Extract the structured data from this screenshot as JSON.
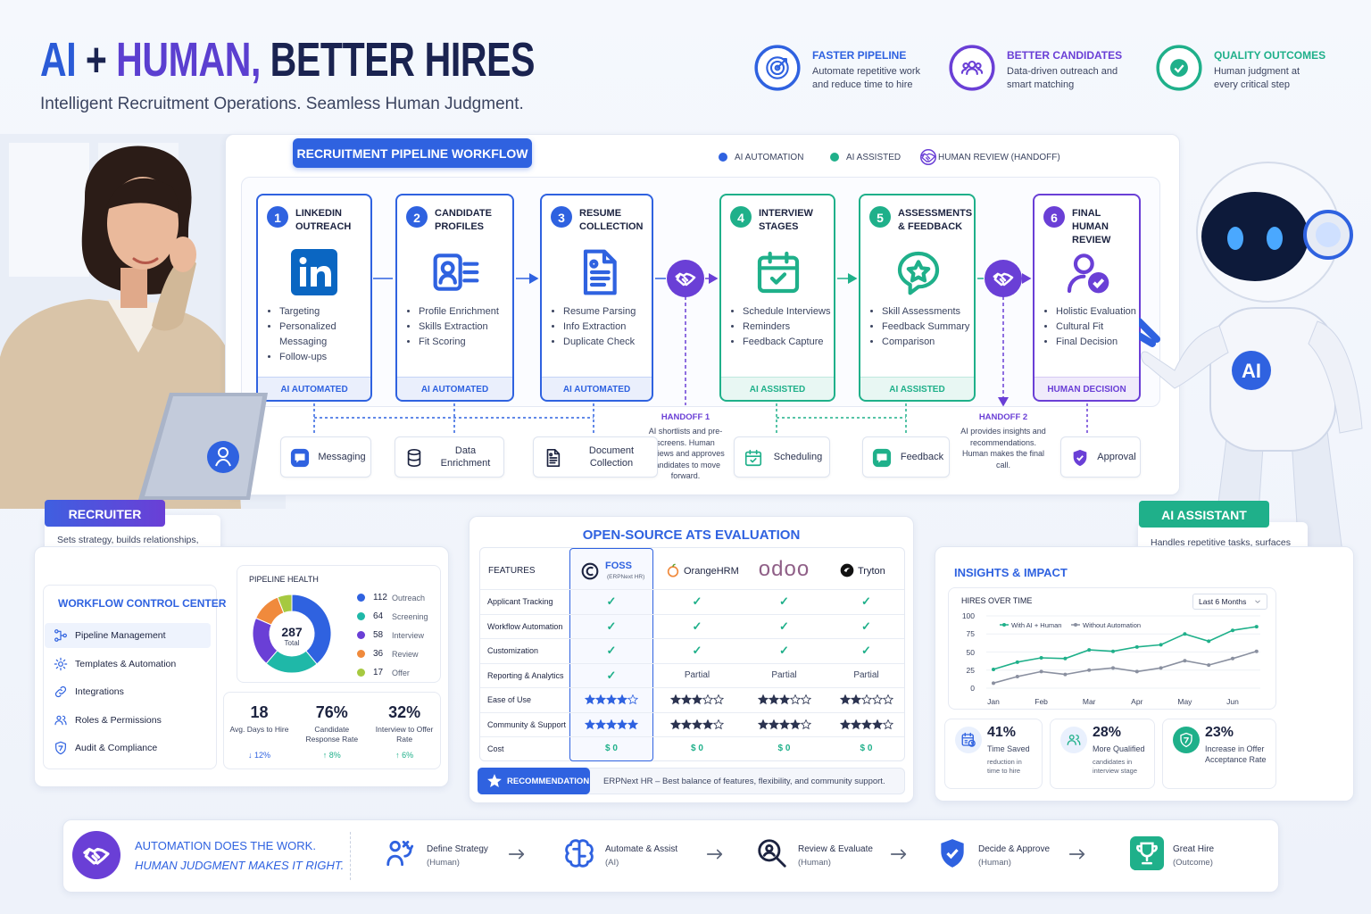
{
  "header": {
    "title_ai": "AI",
    "title_plus": "+",
    "title_human": "HUMAN,",
    "title_rest": "BETTER HIRES",
    "subtitle": "Intelligent Recruitment Operations. Seamless Human Judgment."
  },
  "benefits": [
    {
      "title": "FASTER PIPELINE",
      "text": "Automate repetitive work and reduce time to hire",
      "color": "#2f62e0"
    },
    {
      "title": "BETTER CANDIDATES",
      "text": "Data-driven outreach and smart matching",
      "color": "#6a3fd6"
    },
    {
      "title": "QUALITY OUTCOMES",
      "text": "Human judgment at every critical step",
      "color": "#1fb08a"
    }
  ],
  "pipeline": {
    "title": "RECRUITMENT PIPELINE WORKFLOW",
    "legend": [
      {
        "label": "AI AUTOMATION",
        "color": "#2f62e0"
      },
      {
        "label": "AI ASSISTED",
        "color": "#1fb08a"
      },
      {
        "label": "HUMAN REVIEW (HANDOFF)",
        "color": "#6a3fd6"
      }
    ],
    "steps": [
      {
        "number": 1,
        "title": "LINKEDIN OUTREACH",
        "bullets": [
          "Targeting",
          "Personalized Messaging",
          "Follow-ups"
        ],
        "tag": "AI AUTOMATED",
        "color": "#2f62e0"
      },
      {
        "number": 2,
        "title": "CANDIDATE PROFILES",
        "bullets": [
          "Profile Enrichment",
          "Skills Extraction",
          "Fit Scoring"
        ],
        "tag": "AI AUTOMATED",
        "color": "#2f62e0"
      },
      {
        "number": 3,
        "title": "RESUME COLLECTION",
        "bullets": [
          "Resume Parsing",
          "Info Extraction",
          "Duplicate Check"
        ],
        "tag": "AI AUTOMATED",
        "color": "#2f62e0"
      },
      {
        "number": 4,
        "title": "INTERVIEW STAGES",
        "bullets": [
          "Schedule Interviews",
          "Reminders",
          "Feedback Capture"
        ],
        "tag": "AI ASSISTED",
        "color": "#1fb08a"
      },
      {
        "number": 5,
        "title": "ASSESSMENTS & FEEDBACK",
        "bullets": [
          "Skill Assessments",
          "Feedback Summary",
          "Comparison"
        ],
        "tag": "AI ASSISTED",
        "color": "#1fb08a"
      },
      {
        "number": 6,
        "title": "FINAL HUMAN REVIEW",
        "bullets": [
          "Holistic Evaluation",
          "Cultural Fit",
          "Final Decision"
        ],
        "tag": "HUMAN DECISION",
        "color": "#6a3fd6"
      }
    ],
    "handoffs": [
      {
        "title": "HANDOFF 1",
        "text": "AI shortlists and pre-screens. Human reviews and approves candidates to move forward."
      },
      {
        "title": "HANDOFF 2",
        "text": "AI provides insights and recommendations. Human makes the final call."
      }
    ],
    "tools": [
      "Messaging",
      "Data Enrichment",
      "Document Collection",
      "Scheduling",
      "Feedback",
      "Approval"
    ]
  },
  "recruiter": {
    "label": "RECRUITER",
    "text": "Sets strategy, builds relationships, makes decisions, ensures quality."
  },
  "assistant": {
    "label": "AI ASSISTANT",
    "text": "Handles repetitive tasks, surfaces insights, and empowers decisions.",
    "badge": "AI"
  },
  "control_center": {
    "title": "WORKFLOW CONTROL CENTER",
    "items": [
      "Pipeline Management",
      "Templates & Automation",
      "Integrations",
      "Roles & Permissions",
      "Audit & Compliance"
    ]
  },
  "pipeline_stats": [
    {
      "value": "18",
      "label": "Avg. Days to Hire",
      "change": "↓ 12%"
    },
    {
      "value": "76%",
      "label": "Candidate Response Rate",
      "change": "↑ 8%"
    },
    {
      "value": "32%",
      "label": "Interview to Offer Rate",
      "change": "↑ 6%"
    }
  ],
  "ats": {
    "title": "OPEN-SOURCE ATS EVALUATION",
    "features_header": "FEATURES",
    "tools": [
      {
        "name": "FOSS",
        "sub": "(ERPNext HR)"
      },
      {
        "name": "OrangeHRM"
      },
      {
        "name": "odoo"
      },
      {
        "name": "Tryton"
      }
    ],
    "rows": [
      {
        "feature": "Applicant Tracking",
        "cells": [
          "✓",
          "✓",
          "✓",
          "✓"
        ]
      },
      {
        "feature": "Workflow Automation",
        "cells": [
          "✓",
          "✓",
          "✓",
          "✓"
        ]
      },
      {
        "feature": "Customization",
        "cells": [
          "✓",
          "✓",
          "✓",
          "✓"
        ]
      },
      {
        "feature": "Reporting & Analytics",
        "cells": [
          "✓",
          "Partial",
          "Partial",
          "Partial"
        ]
      },
      {
        "feature": "Ease of Use",
        "ratings": [
          4,
          3,
          3,
          2
        ]
      },
      {
        "feature": "Community & Support",
        "ratings": [
          5,
          4,
          4,
          4
        ]
      },
      {
        "feature": "Cost",
        "cells": [
          "$ 0",
          "$ 0",
          "$ 0",
          "$ 0"
        ]
      }
    ],
    "recommendation": {
      "label": "RECOMMENDATION",
      "text": "ERPNext HR – Best balance of features, flexibility, and community support."
    }
  },
  "insights": {
    "title": "INSIGHTS & IMPACT",
    "stats": [
      {
        "value": "41%",
        "label": "Time Saved",
        "note": "reduction in time to hire"
      },
      {
        "value": "28%",
        "label": "More Qualified",
        "note": "candidates in interview stage"
      },
      {
        "value": "23%",
        "label": "Increase in Offer Acceptance Rate"
      }
    ]
  },
  "chart_data": [
    {
      "type": "donut",
      "title": "PIPELINE HEALTH",
      "total": 287,
      "total_label": "Total",
      "categories": [
        "Outreach",
        "Screening",
        "Interview",
        "Review",
        "Offer"
      ],
      "values": [
        112,
        64,
        58,
        36,
        17
      ],
      "colors": [
        "#2f62e0",
        "#1fb8a8",
        "#6a3fd6",
        "#f08a3c",
        "#a6c940"
      ]
    },
    {
      "type": "line",
      "title": "HIRES OVER TIME",
      "range_selector": "Last 6 Months",
      "categories": [
        "Jan",
        null,
        "Feb",
        null,
        "Mar",
        null,
        "Apr",
        null,
        "May",
        null,
        "Jun",
        null
      ],
      "ylim": [
        0,
        100
      ],
      "yticks": [
        0,
        25,
        50,
        75,
        100
      ],
      "grid": true,
      "series": [
        {
          "name": "With AI + Human",
          "color": "#1fb08a",
          "values": [
            26,
            36,
            42,
            41,
            53,
            51,
            57,
            60,
            75,
            65,
            80,
            85
          ]
        },
        {
          "name": "Without Automation",
          "color": "#8a90a0",
          "values": [
            7,
            16,
            23,
            19,
            25,
            28,
            23,
            28,
            38,
            32,
            41,
            51
          ]
        }
      ]
    }
  ],
  "footer": {
    "line1": "AUTOMATION DOES THE WORK.",
    "line2": "HUMAN JUDGMENT MAKES IT RIGHT.",
    "steps": [
      {
        "title": "Define Strategy",
        "sub": "(Human)"
      },
      {
        "title": "Automate & Assist",
        "sub": "(AI)"
      },
      {
        "title": "Review & Evaluate",
        "sub": "(Human)"
      },
      {
        "title": "Decide & Approve",
        "sub": "(Human)"
      },
      {
        "title": "Great Hire",
        "sub": "(Outcome)"
      }
    ]
  }
}
